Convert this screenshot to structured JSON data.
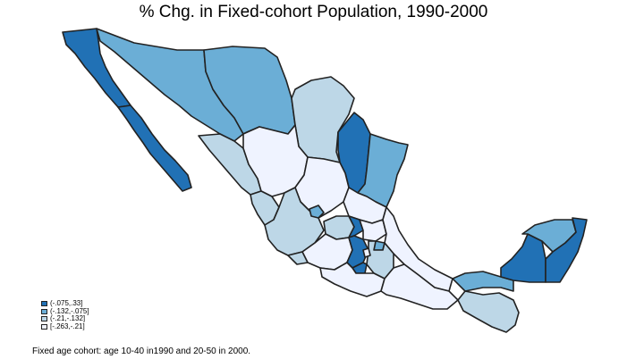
{
  "title": "% Chg. in Fixed-cohort Population, 1990-2000",
  "legend": [
    {
      "label": "(-.075,.33]",
      "color": "#2171b5"
    },
    {
      "label": "(-.132,-.075]",
      "color": "#6baed6"
    },
    {
      "label": "(-.21,-.132]",
      "color": "#bdd7e7"
    },
    {
      "label": "[-.263,-.21]",
      "color": "#eff3ff"
    }
  ],
  "footnote": "Fixed age cohort: age 10-40 in1990 and 20-50 in 2000.",
  "colors": {
    "class1": "#2171b5",
    "class2": "#6baed6",
    "class3": "#bdd7e7",
    "class4": "#eff3ff",
    "border": "#222222"
  }
}
